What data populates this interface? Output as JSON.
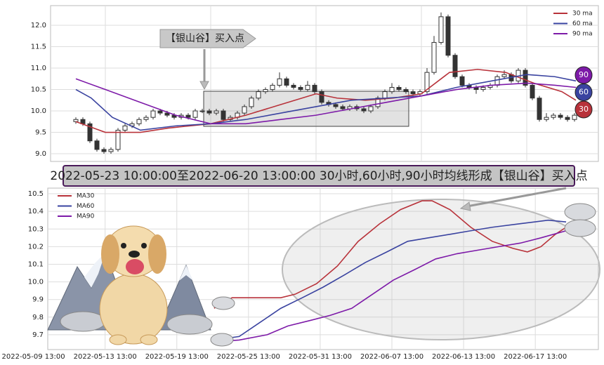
{
  "chart_data": [
    {
      "type": "candlestick",
      "xlim": [
        -3.6,
        74.4
      ],
      "xticks": [
        4.2,
        19.2,
        34.2,
        49.2,
        64.2
      ],
      "ylim": [
        8.82,
        12.46
      ],
      "yticks": [
        {
          "value": 9,
          "label": "9.0"
        },
        9.5,
        {
          "value": 10,
          "label": "10.0"
        },
        10.5,
        {
          "value": 11,
          "label": "11.0"
        },
        11.5,
        {
          "value": 12,
          "label": "12.0"
        }
      ],
      "grid": true,
      "legend": "upper right",
      "candles": [
        [
          9.75,
          9.85,
          9.7,
          9.8
        ],
        [
          9.8,
          9.85,
          9.65,
          9.7
        ],
        [
          9.7,
          9.75,
          9.25,
          9.3
        ],
        [
          9.3,
          9.35,
          9.05,
          9.1
        ],
        [
          9.1,
          9.15,
          9.0,
          9.05
        ],
        [
          9.05,
          9.15,
          9.0,
          9.1
        ],
        [
          9.1,
          9.6,
          9.05,
          9.55
        ],
        [
          9.55,
          9.7,
          9.5,
          9.65
        ],
        [
          9.65,
          9.75,
          9.6,
          9.7
        ],
        [
          9.7,
          9.85,
          9.65,
          9.8
        ],
        [
          9.8,
          9.9,
          9.75,
          9.85
        ],
        [
          9.85,
          10.05,
          9.8,
          10.0
        ],
        [
          10.0,
          10.05,
          9.9,
          9.95
        ],
        [
          9.95,
          10.0,
          9.85,
          9.9
        ],
        [
          9.9,
          9.95,
          9.8,
          9.85
        ],
        [
          9.85,
          9.95,
          9.8,
          9.9
        ],
        [
          9.9,
          9.95,
          9.8,
          9.85
        ],
        [
          9.85,
          10.05,
          9.8,
          10.0
        ],
        [
          10.0,
          10.05,
          9.95,
          10.0
        ],
        [
          10.0,
          10.05,
          9.9,
          9.95
        ],
        [
          9.95,
          10.05,
          9.9,
          10.0
        ],
        [
          10.0,
          10.05,
          9.75,
          9.8
        ],
        [
          9.8,
          9.9,
          9.75,
          9.85
        ],
        [
          9.85,
          10.0,
          9.8,
          9.95
        ],
        [
          9.95,
          10.15,
          9.9,
          10.1
        ],
        [
          10.1,
          10.35,
          10.05,
          10.3
        ],
        [
          10.3,
          10.5,
          10.25,
          10.45
        ],
        [
          10.45,
          10.55,
          10.4,
          10.5
        ],
        [
          10.5,
          10.65,
          10.45,
          10.6
        ],
        [
          10.6,
          10.9,
          10.55,
          10.75
        ],
        [
          10.75,
          10.8,
          10.55,
          10.6
        ],
        [
          10.6,
          10.65,
          10.5,
          10.55
        ],
        [
          10.55,
          10.6,
          10.45,
          10.5
        ],
        [
          10.5,
          10.7,
          10.45,
          10.6
        ],
        [
          10.6,
          10.65,
          10.4,
          10.45
        ],
        [
          10.45,
          10.5,
          10.15,
          10.2
        ],
        [
          10.2,
          10.25,
          10.1,
          10.15
        ],
        [
          10.15,
          10.2,
          10.05,
          10.1
        ],
        [
          10.1,
          10.15,
          10.0,
          10.05
        ],
        [
          10.05,
          10.15,
          10.0,
          10.1
        ],
        [
          10.1,
          10.15,
          10.0,
          10.05
        ],
        [
          10.05,
          10.1,
          9.95,
          10.0
        ],
        [
          10.0,
          10.15,
          9.95,
          10.1
        ],
        [
          10.1,
          10.35,
          10.05,
          10.3
        ],
        [
          10.3,
          10.5,
          10.25,
          10.45
        ],
        [
          10.45,
          10.65,
          10.4,
          10.55
        ],
        [
          10.55,
          10.6,
          10.45,
          10.5
        ],
        [
          10.5,
          10.55,
          10.4,
          10.45
        ],
        [
          10.45,
          10.5,
          10.35,
          10.4
        ],
        [
          10.4,
          10.5,
          10.35,
          10.45
        ],
        [
          10.45,
          11.0,
          10.4,
          10.9
        ],
        [
          10.9,
          11.75,
          10.85,
          11.6
        ],
        [
          11.6,
          12.3,
          11.55,
          12.2
        ],
        [
          12.2,
          12.25,
          11.25,
          11.3
        ],
        [
          11.3,
          11.35,
          10.75,
          10.8
        ],
        [
          10.8,
          10.85,
          10.55,
          10.6
        ],
        [
          10.6,
          10.65,
          10.5,
          10.55
        ],
        [
          10.55,
          10.6,
          10.4,
          10.5
        ],
        [
          10.5,
          10.6,
          10.45,
          10.55
        ],
        [
          10.55,
          10.65,
          10.5,
          10.6
        ],
        [
          10.6,
          10.85,
          10.55,
          10.8
        ],
        [
          10.8,
          10.95,
          10.75,
          10.85
        ],
        [
          10.85,
          10.9,
          10.65,
          10.7
        ],
        [
          10.7,
          11.0,
          10.65,
          10.95
        ],
        [
          10.95,
          11.0,
          10.55,
          10.6
        ],
        [
          10.6,
          10.65,
          10.25,
          10.3
        ],
        [
          10.3,
          10.35,
          9.75,
          9.8
        ],
        [
          9.8,
          9.95,
          9.75,
          9.85
        ],
        [
          9.85,
          9.95,
          9.8,
          9.9
        ],
        [
          9.9,
          9.95,
          9.8,
          9.85
        ],
        [
          9.85,
          9.9,
          9.75,
          9.8
        ],
        [
          9.8,
          9.95,
          9.75,
          9.9
        ],
        [
          9.9,
          10.05,
          9.85,
          10.0
        ]
      ],
      "series": [
        {
          "name": "30 ma",
          "color": "#b8323a",
          "x": [
            0,
            4.2,
            9.2,
            13.2,
            19.2,
            24.2,
            29.2,
            34.2,
            37.2,
            41.2,
            45.2,
            49.2,
            53.2,
            57.2,
            61.2,
            65.2,
            69.2,
            71.2
          ],
          "values": [
            9.75,
            9.5,
            9.5,
            9.6,
            9.7,
            9.9,
            10.15,
            10.4,
            10.3,
            10.25,
            10.3,
            10.4,
            10.9,
            10.97,
            10.9,
            10.65,
            10.45,
            10.25
          ]
        },
        {
          "name": "60 ma",
          "color": "#3a43a0",
          "x": [
            0,
            2.2,
            5.2,
            9.2,
            14.2,
            19.2,
            24.2,
            29.2,
            34.2,
            39.2,
            44.2,
            49.2,
            54.2,
            59.2,
            64.2,
            68.2,
            71.2
          ],
          "values": [
            10.5,
            10.3,
            9.85,
            9.55,
            9.65,
            9.7,
            9.8,
            9.95,
            10.1,
            10.25,
            10.3,
            10.35,
            10.55,
            10.7,
            10.85,
            10.8,
            10.7
          ]
        },
        {
          "name": "90 ma",
          "color": "#7d1aa8",
          "x": [
            0,
            4.2,
            9.2,
            14.2,
            19.2,
            24.2,
            29.2,
            34.2,
            39.2,
            44.2,
            49.2,
            54.2,
            59.2,
            64.2,
            68.2,
            71.2
          ],
          "values": [
            10.75,
            10.5,
            10.2,
            9.9,
            9.7,
            9.7,
            9.8,
            9.9,
            10.05,
            10.2,
            10.35,
            10.5,
            10.6,
            10.65,
            10.6,
            10.55
          ]
        }
      ],
      "highlight": {
        "x": [
          18.2,
          47.4
        ],
        "y": [
          9.64,
          10.46
        ]
      },
      "annotation": "【银山谷】买入点",
      "badges": [
        {
          "label": "90",
          "color": "#7d1aa8"
        },
        {
          "label": "60",
          "color": "#3a43a0"
        },
        {
          "label": "30",
          "color": "#b8323a"
        }
      ]
    },
    {
      "type": "line",
      "xlim": [
        0.2,
        7.88
      ],
      "xticks": [
        {
          "value": 0,
          "label": "2022-05-09 13:00"
        },
        {
          "value": 1,
          "label": "2022-05-13 13:00"
        },
        {
          "value": 2,
          "label": "2022-05-19 13:00"
        },
        {
          "value": 3,
          "label": "2022-05-25 13:00"
        },
        {
          "value": 4,
          "label": "2022-05-31 13:00"
        },
        {
          "value": 5,
          "label": "2022-06-07 13:00"
        },
        {
          "value": 6,
          "label": "2022-06-13 13:00"
        },
        {
          "value": 7,
          "label": "2022-06-17 13:00"
        }
      ],
      "ylim": [
        9.616,
        10.532
      ],
      "yticks": [
        9.7,
        9.8,
        9.9,
        {
          "value": 10,
          "label": "10.0"
        },
        10.1,
        10.2,
        10.3,
        10.4,
        10.5
      ],
      "grid": true,
      "legend": "upper left",
      "series": [
        {
          "name": "MA30",
          "color": "#b8323a",
          "x": [
            2.52,
            2.77,
            3.06,
            3.45,
            3.65,
            3.95,
            4.24,
            4.53,
            4.83,
            5.12,
            5.42,
            5.56,
            5.81,
            6.1,
            6.4,
            6.69,
            6.89,
            7.08,
            7.28,
            7.43
          ],
          "values": [
            9.85,
            9.91,
            9.91,
            9.91,
            9.93,
            9.99,
            10.09,
            10.23,
            10.33,
            10.41,
            10.46,
            10.46,
            10.41,
            10.31,
            10.23,
            10.19,
            10.17,
            10.2,
            10.27,
            10.31
          ]
        },
        {
          "name": "MA60",
          "color": "#3a43a0",
          "x": [
            2.52,
            2.87,
            3.16,
            3.45,
            3.75,
            4.04,
            4.34,
            4.63,
            4.93,
            5.22,
            5.51,
            5.81,
            6.1,
            6.4,
            6.79,
            7.18,
            7.43
          ],
          "values": [
            9.67,
            9.69,
            9.77,
            9.85,
            9.91,
            9.97,
            10.04,
            10.11,
            10.17,
            10.23,
            10.25,
            10.27,
            10.29,
            10.31,
            10.33,
            10.35,
            10.34
          ]
        },
        {
          "name": "MA90",
          "color": "#7d1aa8",
          "x": [
            2.52,
            2.87,
            3.26,
            3.55,
            3.85,
            4.14,
            4.44,
            4.73,
            5.02,
            5.32,
            5.61,
            5.91,
            6.2,
            6.49,
            6.79,
            7.08,
            7.43
          ],
          "values": [
            9.66,
            9.67,
            9.7,
            9.75,
            9.78,
            9.81,
            9.85,
            9.93,
            10.01,
            10.07,
            10.13,
            10.16,
            10.18,
            10.2,
            10.22,
            10.25,
            10.29
          ]
        }
      ]
    }
  ],
  "banner": "2022-05-23 10:00:00至2022-06-20 13:00:00 30小时,60小时,90小时均线形成【银山谷】买入点"
}
